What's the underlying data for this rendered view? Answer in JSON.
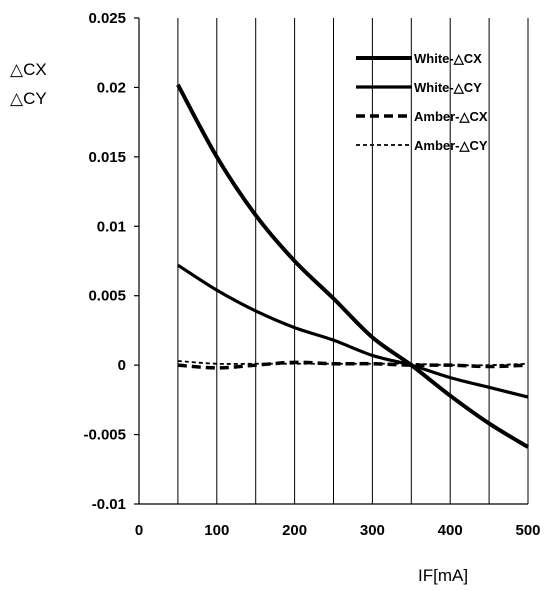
{
  "chart_data": {
    "type": "line",
    "xlabel": "IF[mA]",
    "ylabel_lines": [
      "△CX",
      "△CY"
    ],
    "xlim": [
      0,
      500
    ],
    "ylim": [
      -0.01,
      0.025
    ],
    "x_ticks": [
      0,
      100,
      200,
      300,
      400,
      500
    ],
    "x_tick_labels": [
      "0",
      "100",
      "200",
      "300",
      "400",
      "500"
    ],
    "y_ticks": [
      -0.01,
      -0.005,
      0,
      0.005,
      0.01,
      0.015,
      0.02,
      0.025
    ],
    "y_tick_labels": [
      "-0.01",
      "-0.005",
      "0",
      "0.005",
      "0.01",
      "0.015",
      "0.02",
      "0.025"
    ],
    "vertical_grid_step": 50,
    "legend_position": "top-right",
    "series": [
      {
        "name": "White-△CX",
        "style": "solid-thick",
        "x": [
          50,
          100,
          150,
          200,
          250,
          300,
          350,
          400,
          450,
          500
        ],
        "y": [
          0.0202,
          0.015,
          0.0108,
          0.0075,
          0.0048,
          0.002,
          0.0,
          -0.0022,
          -0.0042,
          -0.0059
        ]
      },
      {
        "name": "White-△CY",
        "style": "solid",
        "x": [
          50,
          100,
          150,
          200,
          250,
          300,
          350,
          400,
          450,
          500
        ],
        "y": [
          0.0072,
          0.0054,
          0.0039,
          0.0027,
          0.0018,
          0.0007,
          0.0,
          -0.0009,
          -0.0016,
          -0.0023
        ]
      },
      {
        "name": "Amber-△CX",
        "style": "dashed-thick",
        "x": [
          50,
          100,
          150,
          200,
          250,
          300,
          350,
          400,
          450,
          500
        ],
        "y": [
          0.0,
          -0.0002,
          0.0,
          0.0002,
          0.0001,
          0.0001,
          0.0,
          0.0,
          -0.0001,
          0.0
        ]
      },
      {
        "name": "Amber-△CY",
        "style": "dashed-thin",
        "x": [
          50,
          100,
          150,
          200,
          250,
          300,
          350,
          400,
          450,
          500
        ],
        "y": [
          0.0003,
          0.0001,
          0.0001,
          0.0001,
          0.0001,
          0.0001,
          0.0001,
          0.0,
          0.0,
          0.0001
        ]
      }
    ]
  }
}
